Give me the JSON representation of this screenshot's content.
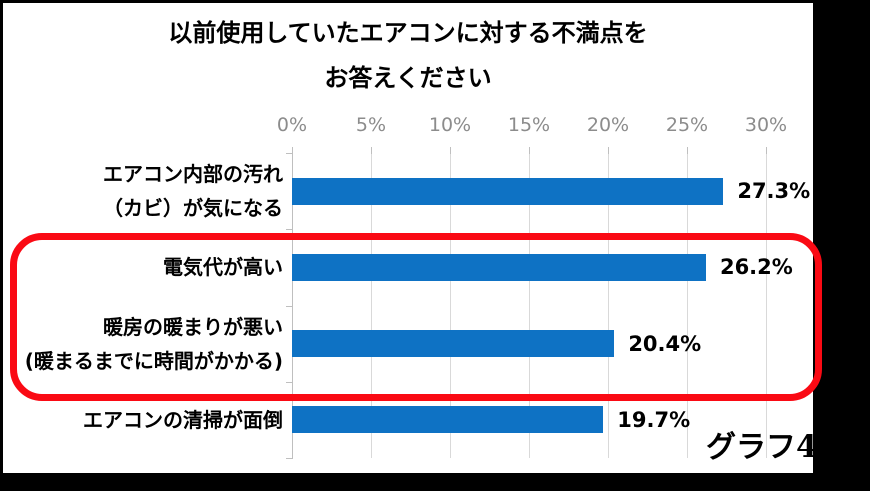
{
  "window": {
    "frame_background": "#000000",
    "panel_background": "#FFFFFF"
  },
  "chart_data": {
    "type": "bar",
    "orientation": "horizontal",
    "title": "以前使用していたエアコンに対する不満点を お答えください",
    "title_lines": [
      "以前使用していたエアコンに対する不満点を",
      "お答えください"
    ],
    "categories": [
      "エアコン内部の汚れ（カビ）が気になる",
      "電気代が高い",
      "暖房の暖まりが悪い(暖まるまでに時間がかかる)",
      "エアコンの清掃が面倒"
    ],
    "category_lines": [
      [
        "エアコン内部の汚れ",
        "（カビ）が気になる"
      ],
      [
        "電気代が高い"
      ],
      [
        "暖房の暖まりが悪い",
        "(暖まるまでに時間がかかる)"
      ],
      [
        "エアコンの清掃が面倒"
      ]
    ],
    "values": [
      27.3,
      26.2,
      20.4,
      19.7
    ],
    "value_labels": [
      "27.3%",
      "26.2%",
      "20.4%",
      "19.7%"
    ],
    "xlim": [
      0,
      30
    ],
    "x_ticks": [
      "0%",
      "5%",
      "10%",
      "15%",
      "20%",
      "25%",
      "30%"
    ],
    "grid": true,
    "legend": "none",
    "bar_color": "#0E72C4",
    "gridline_color": "#D9D9D9",
    "axis_color": "#BFBFBF",
    "tick_label_color": "#8C8C8C",
    "data_label_color": "#000000"
  },
  "highlight": {
    "shape": "rounded-rectangle",
    "color": "#FA0A14",
    "row_indices": [
      1,
      2
    ],
    "rows_enclosed": [
      "電気代が高い",
      "暖房の暖まりが悪い(暖まるまでに時間がかかる)"
    ]
  },
  "caption": {
    "label": "グラフ",
    "number": "4"
  }
}
